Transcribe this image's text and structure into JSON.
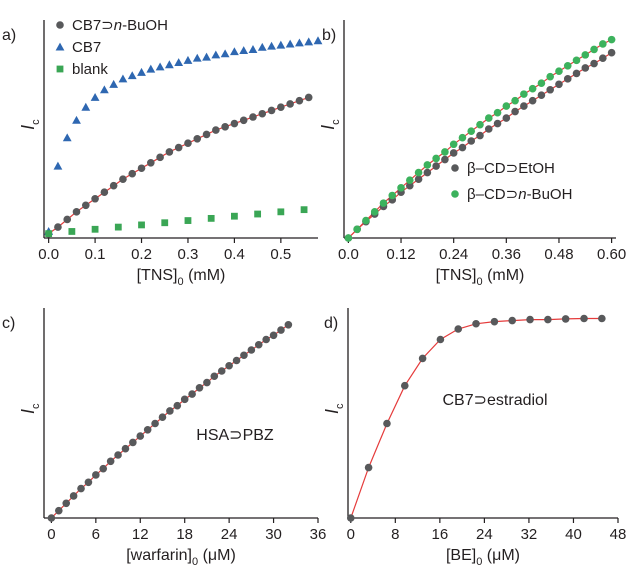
{
  "chart_data": [
    {
      "panel_label": "a)",
      "type": "scatter",
      "ylabel_main": "I",
      "ylabel_sub": "c",
      "xlabel_main": "[TNS]",
      "xlabel_sub": "0",
      "xlabel_unit": " (mM)",
      "xlim": [
        -0.01,
        0.58
      ],
      "ylim": [
        0,
        1.0
      ],
      "xticks": [
        0.0,
        0.1,
        0.2,
        0.3,
        0.4,
        0.5
      ],
      "xtick_labels": [
        "0.0",
        "0.1",
        "0.2",
        "0.3",
        "0.4",
        "0.5"
      ],
      "legend_position": "top-left",
      "series": [
        {
          "name": "CB7⊃n-BuOH",
          "name_parts": [
            "CB7⊃",
            "n",
            "-BuOH"
          ],
          "marker": "circle",
          "color": "#58595b",
          "x": [
            0.0,
            0.02,
            0.04,
            0.06,
            0.08,
            0.1,
            0.12,
            0.14,
            0.16,
            0.18,
            0.2,
            0.22,
            0.24,
            0.26,
            0.28,
            0.3,
            0.32,
            0.34,
            0.36,
            0.38,
            0.4,
            0.42,
            0.44,
            0.46,
            0.48,
            0.5,
            0.52,
            0.54,
            0.56
          ],
          "y": [
            0.02,
            0.05,
            0.085,
            0.12,
            0.15,
            0.18,
            0.21,
            0.24,
            0.27,
            0.295,
            0.32,
            0.345,
            0.37,
            0.395,
            0.415,
            0.435,
            0.455,
            0.475,
            0.495,
            0.51,
            0.525,
            0.54,
            0.555,
            0.57,
            0.585,
            0.6,
            0.615,
            0.63,
            0.645
          ],
          "fit_line": true
        },
        {
          "name": "CB7",
          "name_parts": [
            "CB7"
          ],
          "marker": "triangle",
          "color": "#2e67b1",
          "x": [
            0.0,
            0.02,
            0.04,
            0.06,
            0.08,
            0.1,
            0.12,
            0.14,
            0.16,
            0.18,
            0.2,
            0.22,
            0.24,
            0.26,
            0.28,
            0.3,
            0.32,
            0.34,
            0.36,
            0.38,
            0.4,
            0.42,
            0.44,
            0.46,
            0.48,
            0.5,
            0.52,
            0.54,
            0.56,
            0.58
          ],
          "y": [
            0.03,
            0.33,
            0.46,
            0.54,
            0.6,
            0.645,
            0.68,
            0.705,
            0.73,
            0.745,
            0.76,
            0.775,
            0.785,
            0.795,
            0.805,
            0.815,
            0.825,
            0.83,
            0.84,
            0.845,
            0.855,
            0.86,
            0.865,
            0.875,
            0.88,
            0.885,
            0.89,
            0.895,
            0.9,
            0.905
          ],
          "fit_line": false
        },
        {
          "name": "blank",
          "name_parts": [
            "blank"
          ],
          "marker": "square",
          "color": "#3aa655",
          "x": [
            0.0,
            0.05,
            0.1,
            0.15,
            0.2,
            0.25,
            0.3,
            0.35,
            0.4,
            0.45,
            0.5,
            0.55
          ],
          "y": [
            0.02,
            0.03,
            0.04,
            0.05,
            0.06,
            0.07,
            0.08,
            0.09,
            0.1,
            0.11,
            0.12,
            0.13
          ],
          "fit_line": false
        }
      ]
    },
    {
      "panel_label": "b)",
      "type": "scatter",
      "ylabel_main": "I",
      "ylabel_sub": "c",
      "xlabel_main": "[TNS]",
      "xlabel_sub": "0",
      "xlabel_unit": " (mM)",
      "xlim": [
        -0.01,
        0.61
      ],
      "ylim": [
        0,
        1.0
      ],
      "xticks": [
        0.0,
        0.12,
        0.24,
        0.36,
        0.48,
        0.6
      ],
      "xtick_labels": [
        "0.0",
        "0.12",
        "0.24",
        "0.36",
        "0.48",
        "0.60"
      ],
      "legend_position": "bottom-right",
      "series": [
        {
          "name": "β–CD⊃EtOH",
          "name_parts": [
            "β–CD⊃EtOH"
          ],
          "marker": "circle",
          "color": "#58595b",
          "x": [
            0.0,
            0.02,
            0.04,
            0.06,
            0.08,
            0.1,
            0.12,
            0.14,
            0.16,
            0.18,
            0.2,
            0.22,
            0.24,
            0.26,
            0.28,
            0.3,
            0.32,
            0.34,
            0.36,
            0.38,
            0.4,
            0.42,
            0.44,
            0.46,
            0.48,
            0.5,
            0.52,
            0.54,
            0.56,
            0.58,
            0.6
          ],
          "y": [
            0.0,
            0.04,
            0.075,
            0.11,
            0.145,
            0.175,
            0.21,
            0.24,
            0.27,
            0.3,
            0.33,
            0.36,
            0.39,
            0.415,
            0.445,
            0.47,
            0.5,
            0.525,
            0.55,
            0.58,
            0.605,
            0.63,
            0.655,
            0.68,
            0.705,
            0.73,
            0.755,
            0.78,
            0.8,
            0.825,
            0.85
          ],
          "fit_line": true
        },
        {
          "name": "β–CD⊃n-BuOH",
          "name_parts": [
            "β–CD⊃",
            "n",
            "-BuOH"
          ],
          "marker": "circle",
          "color": "#3cb25d",
          "x": [
            0.0,
            0.02,
            0.04,
            0.06,
            0.08,
            0.1,
            0.12,
            0.14,
            0.16,
            0.18,
            0.2,
            0.22,
            0.24,
            0.26,
            0.28,
            0.3,
            0.32,
            0.34,
            0.36,
            0.38,
            0.4,
            0.42,
            0.44,
            0.46,
            0.48,
            0.5,
            0.52,
            0.54,
            0.56,
            0.58,
            0.6
          ],
          "y": [
            0.0,
            0.04,
            0.08,
            0.12,
            0.16,
            0.195,
            0.23,
            0.265,
            0.3,
            0.335,
            0.365,
            0.395,
            0.43,
            0.46,
            0.49,
            0.52,
            0.55,
            0.575,
            0.605,
            0.63,
            0.66,
            0.685,
            0.71,
            0.74,
            0.765,
            0.79,
            0.815,
            0.84,
            0.865,
            0.89,
            0.91
          ],
          "fit_line": true
        }
      ]
    },
    {
      "panel_label": "c)",
      "type": "scatter",
      "ylabel_main": "I",
      "ylabel_sub": "c",
      "xlabel_main": "[warfarin]",
      "xlabel_sub": "0",
      "xlabel_unit": " (μM)",
      "xlim": [
        -1,
        36
      ],
      "ylim": [
        0,
        1.0
      ],
      "xticks": [
        0,
        6,
        12,
        18,
        24,
        30,
        36
      ],
      "xtick_labels": [
        "0",
        "6",
        "12",
        "18",
        "24",
        "30",
        "36"
      ],
      "annotation": "HSA⊃PBZ",
      "series": [
        {
          "name": "",
          "marker": "circle",
          "color": "#58595b",
          "x": [
            0,
            1,
            2,
            3,
            4,
            5,
            6,
            7,
            8,
            9,
            10,
            11,
            12,
            13,
            14,
            15,
            16,
            17,
            18,
            19,
            20,
            21,
            22,
            23,
            24,
            25,
            26,
            27,
            28,
            29,
            30,
            31,
            32
          ],
          "y": [
            0.0,
            0.035,
            0.07,
            0.105,
            0.14,
            0.17,
            0.205,
            0.235,
            0.27,
            0.3,
            0.33,
            0.36,
            0.39,
            0.42,
            0.45,
            0.48,
            0.51,
            0.535,
            0.565,
            0.59,
            0.62,
            0.645,
            0.675,
            0.7,
            0.725,
            0.75,
            0.775,
            0.8,
            0.825,
            0.85,
            0.87,
            0.895,
            0.92
          ],
          "fit_line": true
        }
      ]
    },
    {
      "panel_label": "d)",
      "type": "scatter",
      "ylabel_main": "I",
      "ylabel_sub": "c",
      "xlabel_main": "[BE]",
      "xlabel_sub": "0",
      "xlabel_unit": " (μM)",
      "xlim": [
        -0.5,
        48
      ],
      "ylim": [
        0,
        1.0
      ],
      "xticks": [
        0,
        8,
        16,
        24,
        32,
        40,
        48
      ],
      "xtick_labels": [
        "0",
        "8",
        "16",
        "24",
        "32",
        "40",
        "48"
      ],
      "annotation": "CB7⊃estradiol",
      "series": [
        {
          "name": "",
          "marker": "circle",
          "color": "#58595b",
          "x": [
            0,
            3.2,
            6.5,
            9.7,
            12.9,
            16.1,
            19.3,
            22.5,
            25.8,
            29.0,
            32.2,
            35.4,
            38.6,
            41.9,
            45.1
          ],
          "y": [
            0.0,
            0.24,
            0.45,
            0.63,
            0.76,
            0.85,
            0.9,
            0.925,
            0.935,
            0.94,
            0.945,
            0.945,
            0.948,
            0.95,
            0.95
          ],
          "fit_line": true
        }
      ]
    }
  ]
}
